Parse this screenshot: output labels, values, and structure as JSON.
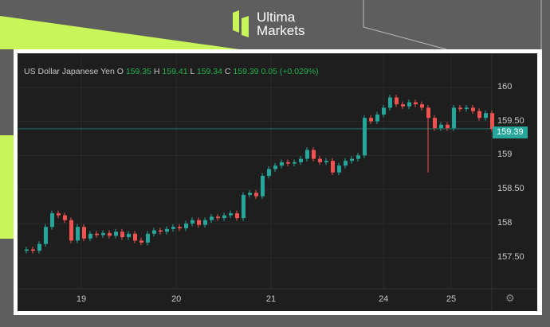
{
  "brand": {
    "line1": "Ultima",
    "line2": "Markets",
    "accent": "#c8f55a"
  },
  "legend": {
    "symbol": "US Dollar Japanese Yen",
    "o_label": "O",
    "o": "159.35",
    "h_label": "H",
    "h": "159.41",
    "l_label": "L",
    "l": "159.34",
    "c_label": "C",
    "c": "159.39",
    "change": "0.05 (+0.029%)"
  },
  "chart_data": {
    "type": "candlestick",
    "ylim": [
      157.1,
      160.3
    ],
    "y_ticks": [
      "160",
      "159.50",
      "159",
      "158.50",
      "158",
      "157.50"
    ],
    "y_tick_values": [
      160,
      159.5,
      159,
      158.5,
      158,
      157.5
    ],
    "x_ticks": [
      {
        "label": "19",
        "index": 9
      },
      {
        "label": "20",
        "index": 23.9
      },
      {
        "label": "21",
        "index": 38.75
      },
      {
        "label": "24",
        "index": 56.4
      },
      {
        "label": "25",
        "index": 67
      }
    ],
    "closes": [
      157.62,
      157.6,
      157.7,
      157.95,
      158.15,
      158.12,
      158.05,
      157.75,
      157.95,
      157.78,
      157.85,
      157.83,
      157.86,
      157.82,
      157.88,
      157.8,
      157.85,
      157.75,
      157.72,
      157.85,
      157.9,
      157.88,
      157.92,
      157.95,
      157.93,
      158.0,
      158.05,
      157.98,
      158.05,
      158.1,
      158.08,
      158.12,
      158.15,
      158.08,
      158.42,
      158.45,
      158.4,
      158.7,
      158.8,
      158.85,
      158.9,
      158.88,
      158.9,
      158.95,
      159.08,
      158.95,
      158.9,
      158.92,
      158.75,
      158.85,
      158.92,
      158.95,
      159.0,
      159.55,
      159.5,
      159.6,
      159.7,
      159.85,
      159.75,
      159.72,
      159.78,
      159.75,
      159.7,
      159.55,
      159.4,
      159.45,
      159.4,
      159.7,
      159.68,
      159.7,
      159.65,
      159.55,
      159.62,
      159.39
    ],
    "spike_low": {
      "index": 63,
      "value": 158.75
    },
    "last_price": 159.39,
    "last_price_label": "159.39",
    "up_color": "#26a69a",
    "down_color": "#ef5350",
    "grid": true
  }
}
